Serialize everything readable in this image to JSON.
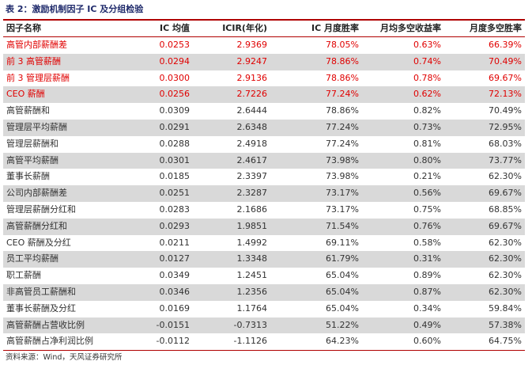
{
  "caption": "表 2：激励机制因子 IC 及分组检验",
  "headers": [
    "因子名称",
    "IC 均值",
    "ICIR(年化)",
    "IC 月度胜率",
    "月均多空收益率",
    "月度多空胜率"
  ],
  "rows": [
    {
      "name": "高管内部薪酬差",
      "ic": "0.0253",
      "icir": "2.9369",
      "ic_win": "78.05%",
      "ls_ret": "0.63%",
      "ls_win": "66.39%",
      "highlight": true,
      "shade": false
    },
    {
      "name": "前 3 高管薪酬",
      "ic": "0.0294",
      "icir": "2.9247",
      "ic_win": "78.86%",
      "ls_ret": "0.74%",
      "ls_win": "70.49%",
      "highlight": true,
      "shade": true
    },
    {
      "name": "前 3 管理层薪酬",
      "ic": "0.0300",
      "icir": "2.9136",
      "ic_win": "78.86%",
      "ls_ret": "0.78%",
      "ls_win": "69.67%",
      "highlight": true,
      "shade": false
    },
    {
      "name": "CEO 薪酬",
      "ic": "0.0256",
      "icir": "2.7226",
      "ic_win": "77.24%",
      "ls_ret": "0.62%",
      "ls_win": "72.13%",
      "highlight": true,
      "shade": true
    },
    {
      "name": "高管薪酬和",
      "ic": "0.0309",
      "icir": "2.6444",
      "ic_win": "78.86%",
      "ls_ret": "0.82%",
      "ls_win": "70.49%",
      "highlight": false,
      "shade": false
    },
    {
      "name": "管理层平均薪酬",
      "ic": "0.0291",
      "icir": "2.6348",
      "ic_win": "77.24%",
      "ls_ret": "0.73%",
      "ls_win": "72.95%",
      "highlight": false,
      "shade": true
    },
    {
      "name": "管理层薪酬和",
      "ic": "0.0288",
      "icir": "2.4918",
      "ic_win": "77.24%",
      "ls_ret": "0.81%",
      "ls_win": "68.03%",
      "highlight": false,
      "shade": false
    },
    {
      "name": "高管平均薪酬",
      "ic": "0.0301",
      "icir": "2.4617",
      "ic_win": "73.98%",
      "ls_ret": "0.80%",
      "ls_win": "73.77%",
      "highlight": false,
      "shade": true
    },
    {
      "name": "董事长薪酬",
      "ic": "0.0185",
      "icir": "2.3397",
      "ic_win": "73.98%",
      "ls_ret": "0.21%",
      "ls_win": "62.30%",
      "highlight": false,
      "shade": false
    },
    {
      "name": "公司内部薪酬差",
      "ic": "0.0251",
      "icir": "2.3287",
      "ic_win": "73.17%",
      "ls_ret": "0.56%",
      "ls_win": "69.67%",
      "highlight": false,
      "shade": true
    },
    {
      "name": "管理层薪酬分红和",
      "ic": "0.0283",
      "icir": "2.1686",
      "ic_win": "73.17%",
      "ls_ret": "0.75%",
      "ls_win": "68.85%",
      "highlight": false,
      "shade": false
    },
    {
      "name": "高管薪酬分红和",
      "ic": "0.0293",
      "icir": "1.9851",
      "ic_win": "71.54%",
      "ls_ret": "0.76%",
      "ls_win": "69.67%",
      "highlight": false,
      "shade": true
    },
    {
      "name": "CEO 薪酬及分红",
      "ic": "0.0211",
      "icir": "1.4992",
      "ic_win": "69.11%",
      "ls_ret": "0.58%",
      "ls_win": "62.30%",
      "highlight": false,
      "shade": false
    },
    {
      "name": "员工平均薪酬",
      "ic": "0.0127",
      "icir": "1.3348",
      "ic_win": "61.79%",
      "ls_ret": "0.31%",
      "ls_win": "62.30%",
      "highlight": false,
      "shade": true
    },
    {
      "name": "职工薪酬",
      "ic": "0.0349",
      "icir": "1.2451",
      "ic_win": "65.04%",
      "ls_ret": "0.89%",
      "ls_win": "62.30%",
      "highlight": false,
      "shade": false
    },
    {
      "name": "非高管员工薪酬和",
      "ic": "0.0346",
      "icir": "1.2356",
      "ic_win": "65.04%",
      "ls_ret": "0.87%",
      "ls_win": "62.30%",
      "highlight": false,
      "shade": true
    },
    {
      "name": "董事长薪酬及分红",
      "ic": "0.0169",
      "icir": "1.1764",
      "ic_win": "65.04%",
      "ls_ret": "0.34%",
      "ls_win": "59.84%",
      "highlight": false,
      "shade": false
    },
    {
      "name": "高管薪酬占营收比例",
      "ic": "-0.0151",
      "icir": "-0.7313",
      "ic_win": "51.22%",
      "ls_ret": "0.49%",
      "ls_win": "57.38%",
      "highlight": false,
      "shade": true
    },
    {
      "name": "高管薪酬占净利润比例",
      "ic": "-0.0112",
      "icir": "-1.1126",
      "ic_win": "64.23%",
      "ls_ret": "0.60%",
      "ls_win": "64.75%",
      "highlight": false,
      "shade": false
    }
  ],
  "source": "资料来源：Wind，天风证券研究所",
  "colors": {
    "highlight_text": "#e00000",
    "rule": "#b00000",
    "shade": "#d9d9d9",
    "caption": "#1f2a6b"
  }
}
